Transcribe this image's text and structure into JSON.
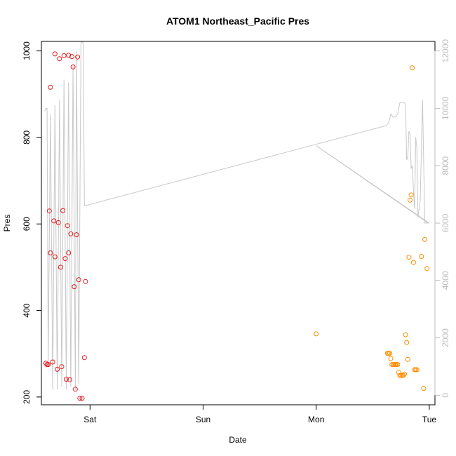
{
  "chart_data": {
    "type": "scatter",
    "title": "ATOM1 Northeast_Pacific Pres",
    "xlabel": "Date",
    "ylabel": "Pres",
    "xlim": [
      -0.43,
      3.05
    ],
    "ylim": [
      182,
      1022
    ],
    "x_ticks": [
      {
        "value": 0,
        "label": "Sat"
      },
      {
        "value": 1,
        "label": "Sun"
      },
      {
        "value": 2,
        "label": "Mon"
      },
      {
        "value": 3,
        "label": "Tue"
      }
    ],
    "y_ticks": [
      200,
      400,
      600,
      800,
      1000
    ],
    "y2lim": [
      -333,
      12333
    ],
    "y2_ticks": [
      0,
      2000,
      4000,
      6000,
      8000,
      10000,
      12000
    ],
    "grid": false,
    "colors": {
      "series1": "#e41a1c",
      "series2": "#ff8c00",
      "line": "#c8c8c8",
      "right_axis": "#bdbdbd",
      "frame": "#000000"
    },
    "series": [
      {
        "color_key": "series1",
        "points": [
          [
            -0.39,
            278
          ],
          [
            -0.38,
            275
          ],
          [
            -0.37,
            275
          ],
          [
            -0.35,
            916
          ],
          [
            -0.36,
            630
          ],
          [
            -0.35,
            533
          ],
          [
            -0.33,
            281
          ],
          [
            -0.32,
            607
          ],
          [
            -0.31,
            993
          ],
          [
            -0.31,
            524
          ],
          [
            -0.29,
            264
          ],
          [
            -0.28,
            603
          ],
          [
            -0.27,
            982
          ],
          [
            -0.26,
            500
          ],
          [
            -0.25,
            270
          ],
          [
            -0.24,
            631
          ],
          [
            -0.23,
            989
          ],
          [
            -0.22,
            520
          ],
          [
            -0.21,
            241
          ],
          [
            -0.2,
            596
          ],
          [
            -0.19,
            990
          ],
          [
            -0.19,
            533
          ],
          [
            -0.18,
            240
          ],
          [
            -0.17,
            577
          ],
          [
            -0.16,
            987
          ],
          [
            -0.15,
            963
          ],
          [
            -0.14,
            455
          ],
          [
            -0.13,
            218
          ],
          [
            -0.12,
            575
          ],
          [
            -0.11,
            986
          ],
          [
            -0.1,
            471
          ],
          [
            -0.09,
            197
          ],
          [
            -0.07,
            197
          ],
          [
            -0.05,
            291
          ],
          [
            -0.04,
            467
          ]
        ]
      },
      {
        "color_key": "series2",
        "points": [
          [
            2.0,
            346
          ],
          [
            2.63,
            301
          ],
          [
            2.64,
            301
          ],
          [
            2.65,
            301
          ],
          [
            2.66,
            289
          ],
          [
            2.67,
            275
          ],
          [
            2.68,
            275
          ],
          [
            2.69,
            275
          ],
          [
            2.7,
            275
          ],
          [
            2.71,
            275
          ],
          [
            2.72,
            275
          ],
          [
            2.73,
            257
          ],
          [
            2.74,
            250
          ],
          [
            2.75,
            250
          ],
          [
            2.76,
            250
          ],
          [
            2.77,
            250
          ],
          [
            2.78,
            253
          ],
          [
            2.79,
            344
          ],
          [
            2.8,
            326
          ],
          [
            2.81,
            287
          ],
          [
            2.82,
            523
          ],
          [
            2.83,
            655
          ],
          [
            2.84,
            667
          ],
          [
            2.85,
            961
          ],
          [
            2.86,
            511
          ],
          [
            2.87,
            263
          ],
          [
            2.88,
            263
          ],
          [
            2.89,
            263
          ],
          [
            2.93,
            525
          ],
          [
            2.95,
            220
          ],
          [
            2.96,
            564
          ],
          [
            2.98,
            497
          ]
        ]
      }
    ],
    "line_y2": [
      [
        -0.4,
        9900
      ],
      [
        -0.39,
        10000
      ],
      [
        -0.38,
        10000
      ],
      [
        -0.37,
        1000
      ],
      [
        -0.35,
        9800
      ],
      [
        -0.33,
        200
      ],
      [
        -0.31,
        10100
      ],
      [
        -0.29,
        200
      ],
      [
        -0.27,
        10300
      ],
      [
        -0.25,
        300
      ],
      [
        -0.23,
        11000
      ],
      [
        -0.21,
        200
      ],
      [
        -0.19,
        10900
      ],
      [
        -0.17,
        300
      ],
      [
        -0.15,
        11500
      ],
      [
        -0.13,
        200
      ],
      [
        -0.12,
        12000
      ],
      [
        -0.1,
        400
      ],
      [
        -0.08,
        12300
      ],
      [
        -0.06,
        12300
      ],
      [
        -0.05,
        6600
      ],
      [
        2.62,
        9400
      ],
      [
        2.64,
        9500
      ],
      [
        2.66,
        9800
      ],
      [
        2.68,
        9700
      ],
      [
        2.7,
        9700
      ],
      [
        2.72,
        9800
      ],
      [
        2.74,
        10200
      ],
      [
        2.76,
        10200
      ],
      [
        2.78,
        10200
      ],
      [
        2.79,
        10100
      ],
      [
        2.8,
        8200
      ],
      [
        2.81,
        8300
      ],
      [
        2.82,
        9200
      ],
      [
        2.83,
        9100
      ],
      [
        2.84,
        7900
      ],
      [
        2.85,
        8000
      ],
      [
        2.86,
        7100
      ],
      [
        2.87,
        6500
      ],
      [
        2.88,
        9000
      ],
      [
        2.89,
        8600
      ],
      [
        2.9,
        6200
      ],
      [
        2.92,
        6800
      ],
      [
        2.94,
        10300
      ],
      [
        2.96,
        6000
      ],
      [
        2.98,
        6000
      ],
      [
        2.99,
        6000
      ],
      [
        2.0,
        8700
      ],
      [
        3.0,
        6000
      ]
    ]
  }
}
